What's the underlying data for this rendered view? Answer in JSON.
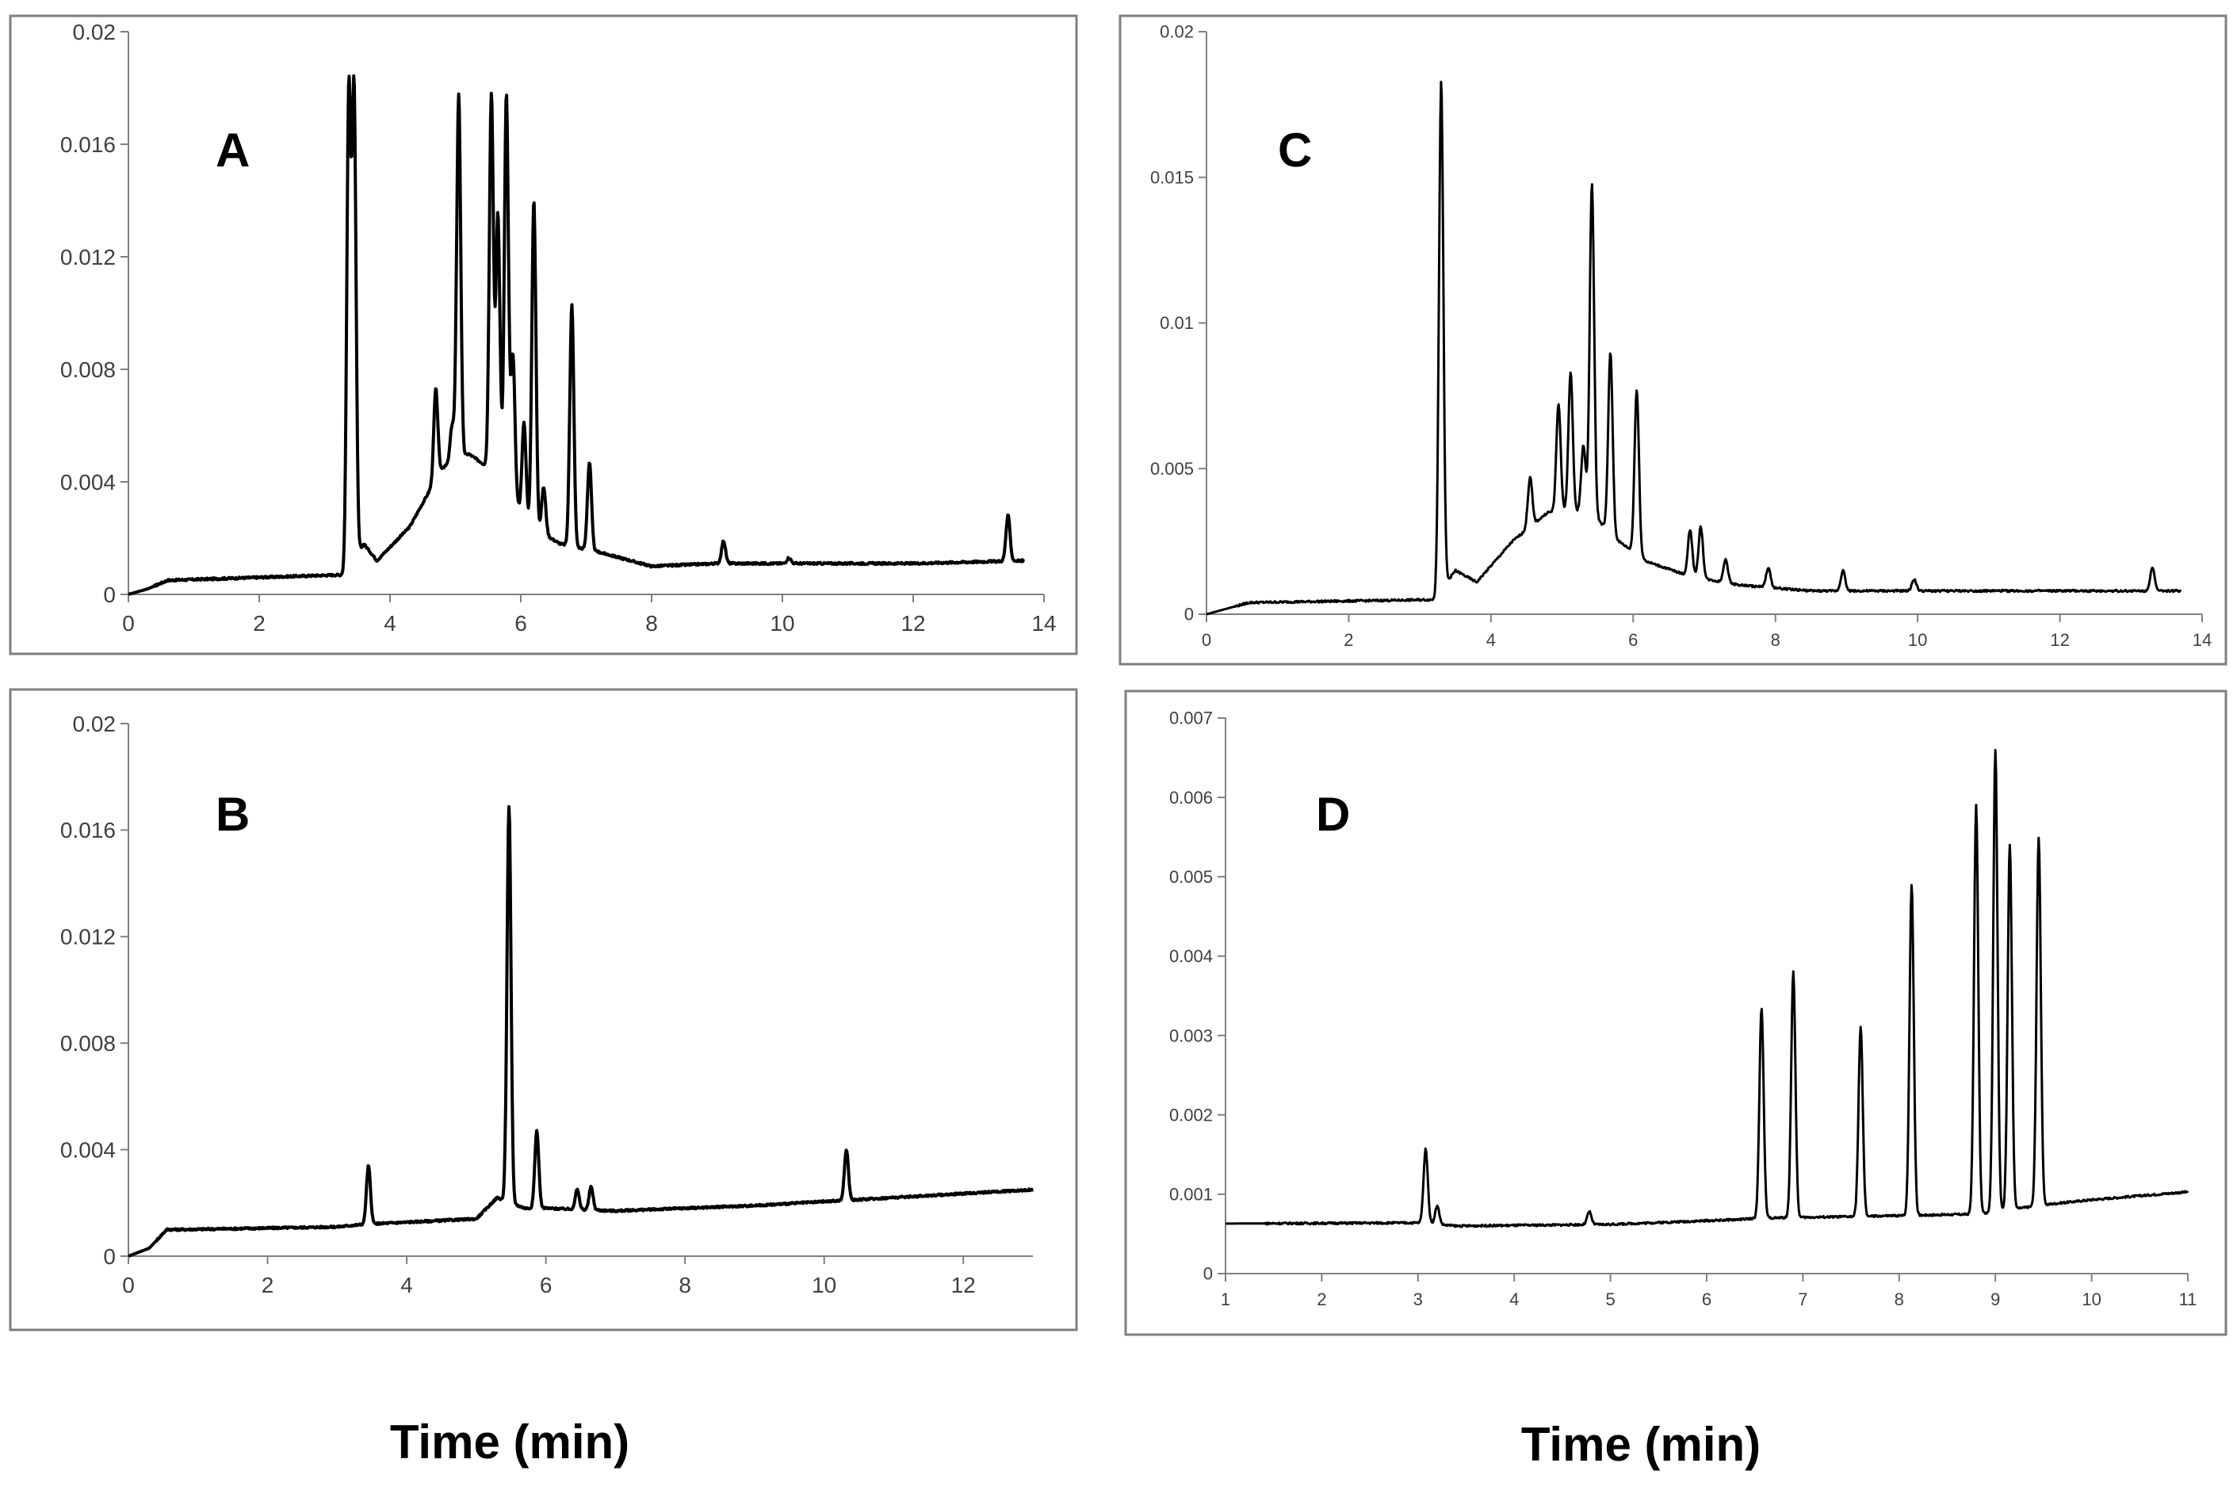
{
  "chart_data": [
    {
      "type": "line",
      "panel_label": "A",
      "xlim": [
        0,
        14
      ],
      "ylim": [
        0,
        0.02
      ],
      "x_ticks": [
        "0",
        "2",
        "4",
        "6",
        "8",
        "10",
        "12",
        "14"
      ],
      "y_ticks": [
        "0",
        "0.004",
        "0.008",
        "0.012",
        "0.016",
        "0.02"
      ],
      "baseline": [
        [
          0,
          0
        ],
        [
          0.3,
          0.0002
        ],
        [
          0.6,
          0.0005
        ],
        [
          3.3,
          0.0007
        ],
        [
          3.6,
          0.0018
        ],
        [
          3.8,
          0.0012
        ],
        [
          4.3,
          0.0024
        ],
        [
          4.8,
          0.0045
        ],
        [
          5.2,
          0.005
        ],
        [
          5.7,
          0.0042
        ],
        [
          6.1,
          0.0025
        ],
        [
          6.6,
          0.0018
        ],
        [
          7.2,
          0.0015
        ],
        [
          8,
          0.001
        ],
        [
          9,
          0.0011
        ],
        [
          12,
          0.0011
        ],
        [
          13.7,
          0.0012
        ]
      ],
      "peaks": [
        [
          3.37,
          0.0178
        ],
        [
          3.45,
          0.0178
        ],
        [
          4.7,
          0.0073
        ],
        [
          4.95,
          0.006
        ],
        [
          5.05,
          0.0178
        ],
        [
          5.55,
          0.0178
        ],
        [
          5.65,
          0.0135
        ],
        [
          5.78,
          0.0178
        ],
        [
          5.88,
          0.0085
        ],
        [
          6.05,
          0.0061
        ],
        [
          6.2,
          0.014
        ],
        [
          6.35,
          0.0038
        ],
        [
          6.78,
          0.0103
        ],
        [
          7.05,
          0.0047
        ],
        [
          9.1,
          0.0019
        ],
        [
          10.1,
          0.0013
        ],
        [
          13.45,
          0.0028
        ]
      ],
      "stroke_width": 4
    },
    {
      "type": "line",
      "panel_label": "B",
      "xlim": [
        0,
        13
      ],
      "ylim": [
        0,
        0.02
      ],
      "x_ticks": [
        "0",
        "2",
        "4",
        "6",
        "8",
        "10",
        "12"
      ],
      "y_ticks": [
        "0",
        "0.004",
        "0.008",
        "0.012",
        "0.016",
        "0.02"
      ],
      "baseline": [
        [
          0,
          0
        ],
        [
          0.3,
          0.0003
        ],
        [
          0.55,
          0.001
        ],
        [
          0.8,
          0.001
        ],
        [
          3,
          0.0011
        ],
        [
          3.4,
          0.0012
        ],
        [
          5,
          0.0014
        ],
        [
          5.3,
          0.0022
        ],
        [
          5.7,
          0.0018
        ],
        [
          6,
          0.0018
        ],
        [
          7,
          0.0017
        ],
        [
          9,
          0.0019
        ],
        [
          11,
          0.0022
        ],
        [
          13,
          0.0025
        ]
      ],
      "peaks": [
        [
          3.45,
          0.0034
        ],
        [
          5.47,
          0.0169
        ],
        [
          5.87,
          0.0047
        ],
        [
          6.45,
          0.0025
        ],
        [
          6.65,
          0.0026
        ],
        [
          10.32,
          0.004
        ]
      ],
      "stroke_width": 4
    },
    {
      "type": "line",
      "panel_label": "C",
      "xlim": [
        0,
        14
      ],
      "ylim": [
        0,
        0.02
      ],
      "x_ticks": [
        "0",
        "2",
        "4",
        "6",
        "8",
        "10",
        "12",
        "14"
      ],
      "y_ticks": [
        "0",
        "0.005",
        "0.01",
        "0.015",
        "0.02"
      ],
      "baseline": [
        [
          0,
          0
        ],
        [
          0.3,
          0.0002
        ],
        [
          0.6,
          0.0004
        ],
        [
          3.2,
          0.0005
        ],
        [
          3.5,
          0.0015
        ],
        [
          3.8,
          0.0011
        ],
        [
          4.3,
          0.0025
        ],
        [
          4.8,
          0.0035
        ],
        [
          5.4,
          0.0035
        ],
        [
          5.8,
          0.0025
        ],
        [
          6.2,
          0.0018
        ],
        [
          6.8,
          0.0013
        ],
        [
          7.5,
          0.001
        ],
        [
          8.5,
          0.0008
        ],
        [
          10,
          0.0008
        ],
        [
          13.7,
          0.0008
        ]
      ],
      "peaks": [
        [
          3.3,
          0.0183
        ],
        [
          4.55,
          0.0047
        ],
        [
          4.95,
          0.0072
        ],
        [
          5.12,
          0.0083
        ],
        [
          5.3,
          0.0058
        ],
        [
          5.42,
          0.0148
        ],
        [
          5.68,
          0.009
        ],
        [
          6.05,
          0.0077
        ],
        [
          6.8,
          0.0029
        ],
        [
          6.95,
          0.003
        ],
        [
          7.3,
          0.0019
        ],
        [
          7.9,
          0.0016
        ],
        [
          8.95,
          0.0015
        ],
        [
          9.95,
          0.0012
        ],
        [
          13.3,
          0.0016
        ]
      ],
      "stroke_width": 3
    },
    {
      "type": "line",
      "panel_label": "D",
      "xlim": [
        1,
        11
      ],
      "ylim": [
        0,
        0.007
      ],
      "x_ticks": [
        "1",
        "2",
        "3",
        "4",
        "5",
        "6",
        "7",
        "8",
        "9",
        "10",
        "11"
      ],
      "y_ticks": [
        "0",
        "0.001",
        "0.002",
        "0.003",
        "0.004",
        "0.005",
        "0.006",
        "0.007"
      ],
      "baseline": [
        [
          1,
          0.00063
        ],
        [
          3,
          0.00064
        ],
        [
          3.4,
          0.0006
        ],
        [
          5,
          0.00062
        ],
        [
          6.3,
          0.00068
        ],
        [
          6.6,
          0.0007
        ],
        [
          7.6,
          0.00072
        ],
        [
          8.8,
          0.00075
        ],
        [
          9.6,
          0.00088
        ],
        [
          10,
          0.00093
        ],
        [
          11,
          0.00103
        ]
      ],
      "peaks": [
        [
          3.08,
          0.00157
        ],
        [
          3.2,
          0.00085
        ],
        [
          4.78,
          0.00078
        ],
        [
          6.57,
          0.00335
        ],
        [
          6.9,
          0.0038
        ],
        [
          7.6,
          0.0031
        ],
        [
          8.13,
          0.0049
        ],
        [
          8.8,
          0.0059
        ],
        [
          9.0,
          0.0066
        ],
        [
          9.15,
          0.0054
        ],
        [
          9.45,
          0.0055
        ]
      ],
      "stroke_width": 3
    }
  ],
  "x_axis_titles": [
    "Time (min)",
    "Time (min)"
  ]
}
